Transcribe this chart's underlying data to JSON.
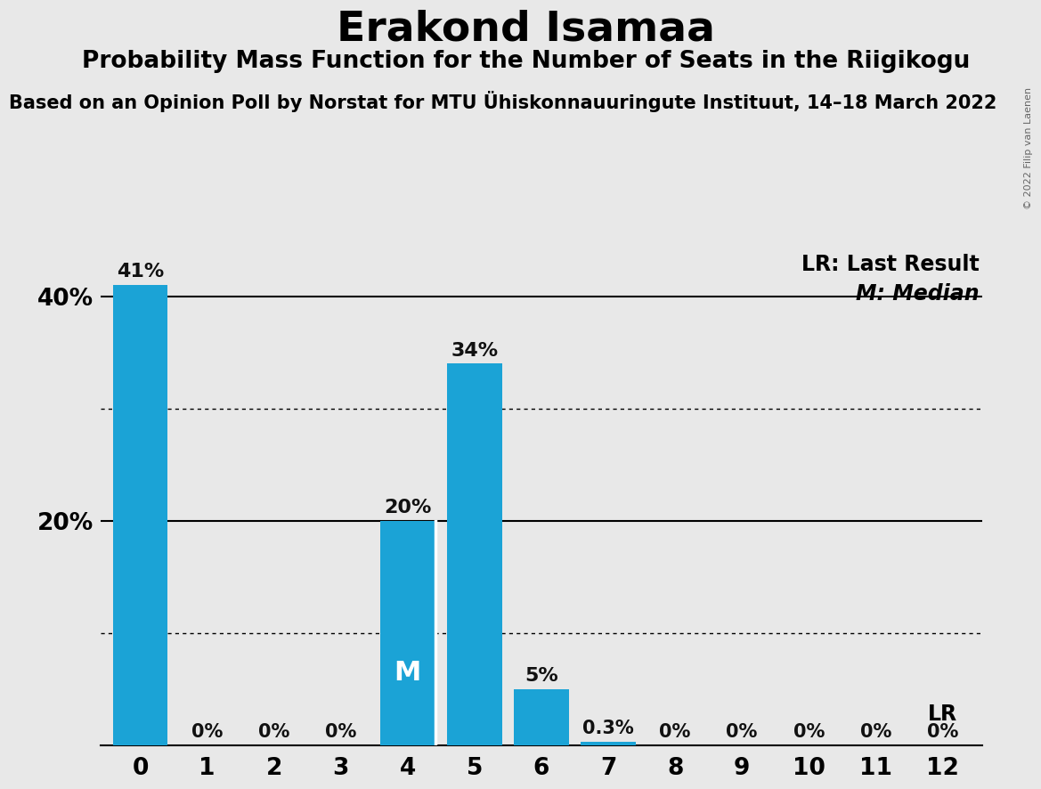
{
  "title": "Erakond Isamaa",
  "subtitle": "Probability Mass Function for the Number of Seats in the Riigikogu",
  "source_line": "Based on an Opinion Poll by Norstat for MTU Ühiskonnauuringute Instituut, 14–18 March 2022",
  "copyright": "© 2022 Filip van Laenen",
  "categories": [
    0,
    1,
    2,
    3,
    4,
    5,
    6,
    7,
    8,
    9,
    10,
    11,
    12
  ],
  "values": [
    41,
    0,
    0,
    0,
    20,
    34,
    5,
    0.3,
    0,
    0,
    0,
    0,
    0
  ],
  "bar_color": "#1ba3d6",
  "background_color": "#e8e8e8",
  "median_seat": 4,
  "last_result_seat": 12,
  "median_label": "M",
  "ylim": [
    0,
    44
  ],
  "solid_line_y": [
    20,
    40
  ],
  "dotted_line_y": [
    10,
    30
  ],
  "legend_lr": "LR: Last Result",
  "legend_m": "M: Median",
  "lr_annotation": "LR",
  "title_fontsize": 34,
  "subtitle_fontsize": 19,
  "source_fontsize": 15,
  "tick_fontsize": 19,
  "label_fontsize": 15,
  "bar_width": 0.82
}
